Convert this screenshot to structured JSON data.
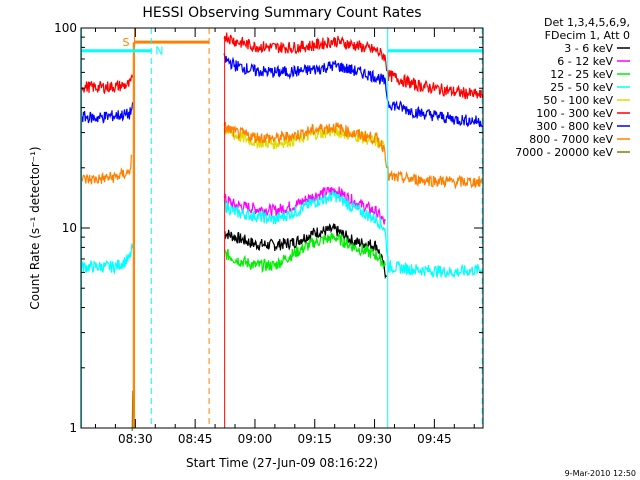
{
  "chart_data": {
    "type": "line",
    "title": "HESSI Observing Summary Count Rates",
    "xlabel": "Start Time (27-Jun-09 08:16:22)",
    "ylabel": "Count Rate (s⁻¹ detector⁻¹)",
    "yscale": "log",
    "ylim": [
      1,
      100
    ],
    "xlim_minutes": [
      496.37,
      597.2
    ],
    "ytick_labels": [
      {
        "value": 1,
        "label": "1"
      },
      {
        "value": 10,
        "label": "10"
      },
      {
        "value": 100,
        "label": "100"
      }
    ],
    "xtick_labels": [
      {
        "minute": 510,
        "label": "08:30"
      },
      {
        "minute": 525,
        "label": "08:45"
      },
      {
        "minute": 540,
        "label": "09:00"
      },
      {
        "minute": 555,
        "label": "09:15"
      },
      {
        "minute": 570,
        "label": "09:30"
      },
      {
        "minute": 585,
        "label": "09:45"
      }
    ],
    "legend_header": [
      "Det 1,3,4,5,6,9,",
      "FDecim 1, Att 0"
    ],
    "legend_placement": "right",
    "series": [
      {
        "name": "3 - 6 keV",
        "color": "#000000",
        "segments": [
          {
            "t": [
              532.3,
              535,
              540,
              545,
              550,
              555,
              560,
              565,
              570.5,
              572.7,
              573
            ],
            "y": [
              9.5,
              9,
              8.3,
              8.2,
              8.5,
              9.5,
              9.8,
              8.5,
              8.2,
              6.0,
              6.0
            ]
          }
        ]
      },
      {
        "name": "6 - 12 keV",
        "color": "#ff00ff",
        "segments": [
          {
            "t": [
              532.3,
              535,
              540,
              545,
              550,
              555,
              560,
              565,
              570.5,
              572.7
            ],
            "y": [
              14.0,
              13.0,
              12.5,
              12.2,
              13.0,
              14.5,
              15.5,
              13.5,
              12.0,
              10.5
            ]
          }
        ]
      },
      {
        "name": "12 - 25 keV",
        "color": "#00ee00",
        "segments": [
          {
            "t": [
              532.3,
              535,
              540,
              545,
              550,
              555,
              560,
              565,
              570.5,
              572.7
            ],
            "y": [
              7.5,
              7.0,
              6.5,
              6.5,
              7.5,
              8.5,
              9.0,
              8.0,
              7.3,
              6.5
            ]
          }
        ]
      },
      {
        "name": "25 - 50 keV",
        "color": "#00ffff",
        "segments": [
          {
            "t": [
              496.5,
              500,
              505,
              508.5,
              509.3
            ],
            "y": [
              6.4,
              6.4,
              6.4,
              7.0,
              8.0
            ]
          },
          {
            "t": [
              532.3,
              535,
              540,
              545,
              550,
              555,
              560,
              565,
              570.5,
              572.5,
              573.5,
              580,
              590,
              597
            ],
            "y": [
              13.0,
              12.0,
              11.5,
              11.0,
              12.0,
              13.5,
              14.5,
              12.5,
              11.0,
              10.0,
              6.4,
              6.2,
              6.0,
              6.2
            ]
          }
        ]
      },
      {
        "name": "50 - 100 keV",
        "color": "#dddd00",
        "segments": [
          {
            "t": [
              532.3,
              535,
              540,
              545,
              550,
              555,
              560,
              565,
              570.5,
              572.7
            ],
            "y": [
              31.0,
              29.0,
              27.0,
              26.5,
              27.5,
              29.5,
              30.5,
              29.0,
              27.0,
              25.0
            ]
          }
        ]
      },
      {
        "name": "100 - 300 keV",
        "color": "#ff0000",
        "segments": [
          {
            "t": [
              496.5,
              500,
              505,
              508.5,
              509.3
            ],
            "y": [
              51.0,
              50.5,
              51.0,
              52.0,
              55.0
            ]
          },
          {
            "t": [
              532.3,
              535,
              540,
              545,
              550,
              555,
              560,
              565,
              570.5,
              572.5,
              573.5,
              580,
              590,
              597
            ],
            "y": [
              92.0,
              86.0,
              81.0,
              80.0,
              80.0,
              82.0,
              86.0,
              82.0,
              77.0,
              72.0,
              58.0,
              52.0,
              48.0,
              46.0
            ]
          }
        ]
      },
      {
        "name": "300 - 800 keV",
        "color": "#0000ff",
        "segments": [
          {
            "t": [
              496.5,
              500,
              505,
              508.5,
              509.3
            ],
            "y": [
              36.0,
              35.5,
              36.5,
              37.0,
              40.0
            ]
          },
          {
            "t": [
              532.3,
              535,
              540,
              545,
              550,
              555,
              560,
              565,
              570.5,
              572.5,
              573.5,
              580,
              590,
              597
            ],
            "y": [
              70.0,
              65.0,
              61.0,
              60.0,
              60.5,
              62.0,
              65.0,
              61.0,
              57.0,
              54.0,
              42.0,
              38.0,
              35.0,
              34.0
            ]
          }
        ]
      },
      {
        "name": "800 - 7000 keV",
        "color": "#ff8000",
        "segments": [
          {
            "t": [
              496.5,
              500,
              505,
              508.5,
              509.0
            ],
            "y": [
              17.5,
              17.5,
              18.0,
              19.0,
              22.0
            ]
          },
          {
            "t": [
              532.3,
              535,
              540,
              545,
              550,
              555,
              560,
              565,
              570.5,
              572.5,
              573.5,
              580,
              590,
              597
            ],
            "y": [
              32.0,
              30.0,
              28.5,
              28.0,
              29.0,
              31.0,
              32.0,
              29.5,
              28.0,
              25.0,
              18.0,
              17.5,
              17.0,
              17.0
            ]
          }
        ]
      },
      {
        "name": "7000 - 20000 keV",
        "color": "#808000",
        "segments": [
          {
            "t": [
              509.2,
              509.4,
              509.6,
              509.8
            ],
            "y": [
              1.0,
              1.8,
              1.0,
              1.5
            ]
          }
        ]
      }
    ],
    "annotations": {
      "saa": {
        "label": "S",
        "color": "#ff8000",
        "start_minute": 509.8,
        "end_minute": 528.5,
        "start_line_minute": 509.8,
        "end_line_minute": 528.5,
        "level": 85
      },
      "night": [
        {
          "label": "N",
          "color": "#00ffff",
          "start_minute": 496.5,
          "end_minute": 514.0,
          "start_line_minute": 496.5,
          "end_line_minute": 514.0,
          "level": 77
        },
        {
          "label": "",
          "color": "#00ffff",
          "start_minute": 573.3,
          "end_minute": 597.0,
          "start_line_minute": 573.3,
          "end_line_minute": 597.0,
          "level": 77
        }
      ]
    }
  },
  "footer": {
    "date": "9-Mar-2010 12:50"
  }
}
